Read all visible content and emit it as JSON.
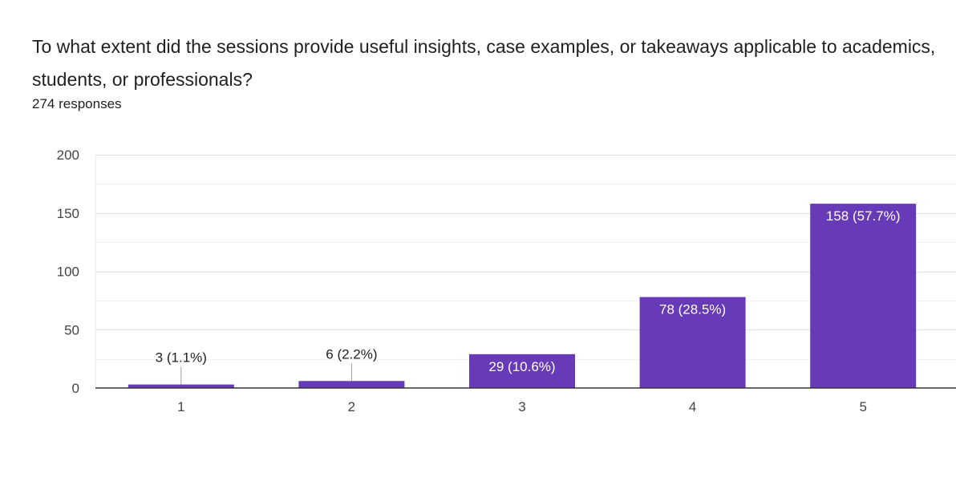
{
  "question": {
    "title": "To what extent did the sessions provide useful insights, case examples, or takeaways applicable to academics, students, or professionals?",
    "response_count": "274 responses"
  },
  "colors": {
    "bar": "#673ab7",
    "grid": "#e8e8e8",
    "axis": "#333333",
    "label_text": "#202124",
    "inside_label_text": "#ffffff"
  },
  "chart_data": {
    "type": "bar",
    "title": "To what extent did the sessions provide useful insights, case examples, or takeaways applicable to academics, students, or professionals?",
    "xlabel": "",
    "ylabel": "",
    "ylim": [
      0,
      200
    ],
    "y_ticks": [
      0,
      50,
      100,
      150,
      200
    ],
    "grid": true,
    "categories": [
      "1",
      "2",
      "3",
      "4",
      "5"
    ],
    "values": [
      3,
      6,
      29,
      78,
      158
    ],
    "data_labels": [
      "3 (1.1%)",
      "6 (2.2%)",
      "29 (10.6%)",
      "78 (28.5%)",
      "158 (57.7%)"
    ],
    "label_inside": [
      false,
      false,
      true,
      true,
      true
    ]
  }
}
